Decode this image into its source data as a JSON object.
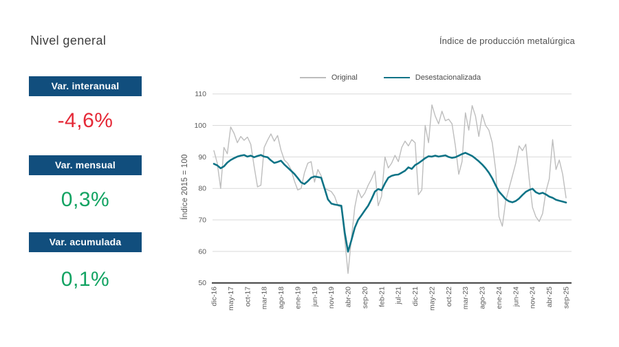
{
  "header": {
    "title": "Nivel general"
  },
  "stats": [
    {
      "label": "Var. interanual",
      "value": "-4,6%",
      "color": "#e52937"
    },
    {
      "label": "Var. mensual",
      "value": "0,3%",
      "color": "#12a362"
    },
    {
      "label": "Var. acumulada",
      "value": "0,1%",
      "color": "#12a362"
    }
  ],
  "theme": {
    "box_bg": "#114e7d",
    "box_text": "#ffffff"
  },
  "chart_data": {
    "type": "line",
    "title": "Índice de producción metalúrgica",
    "ylabel": "Índice 2015 = 100",
    "ylim": [
      50,
      110
    ],
    "y_ticks": [
      50,
      60,
      70,
      80,
      90,
      100,
      110
    ],
    "grid": "horizontal",
    "legend_position": "top",
    "x_unit": "month",
    "x_range": [
      "dic-16",
      "sep-25"
    ],
    "x_tick_step_months": 5,
    "x_tick_labels": [
      "dic-16",
      "may-17",
      "oct-17",
      "mar-18",
      "ago-18",
      "ene-19",
      "jun-19",
      "nov-19",
      "abr-20",
      "sep-20",
      "feb-21",
      "jul-21",
      "dic-21",
      "may-22",
      "oct-22",
      "mar-23",
      "ago-23",
      "ene-24",
      "jun-24",
      "nov-24",
      "abr-25",
      "sep-25"
    ],
    "series": [
      {
        "name": "Original",
        "key": "original",
        "color": "#bdbdbd",
        "line_width": 1.4,
        "values": [
          92,
          88,
          80,
          93,
          91,
          99.5,
          97.5,
          94.5,
          96.5,
          95.3,
          96.3,
          94,
          87,
          80.5,
          81,
          93,
          95.3,
          97.3,
          95,
          96.8,
          92.2,
          89,
          88,
          86,
          82.4,
          79.5,
          80,
          85,
          88,
          88.5,
          82,
          86,
          84,
          80,
          79.5,
          79,
          77.5,
          74.5,
          74,
          64,
          53,
          64,
          74,
          79.5,
          77,
          78.5,
          81,
          83,
          85.5,
          74.5,
          77.5,
          90,
          86.5,
          88,
          90.5,
          88.5,
          93,
          95,
          93.5,
          95.5,
          94.5,
          78,
          79.5,
          100,
          94.5,
          106.5,
          103,
          100.5,
          104.5,
          101.5,
          102,
          100.5,
          93.5,
          84.5,
          88.5,
          104,
          98.5,
          106.3,
          103,
          96.5,
          103.5,
          100,
          98.5,
          94.5,
          86,
          71,
          68,
          76,
          80,
          84,
          88,
          93.5,
          92,
          94,
          83,
          74,
          71,
          69.5,
          72,
          79,
          83,
          95.5,
          86,
          89,
          84.5,
          77
        ]
      },
      {
        "name": "Desestacionalizada",
        "key": "desestacionalizada",
        "color": "#0d7386",
        "line_width": 2.6,
        "values": [
          87.8,
          87.3,
          86.4,
          87,
          88.2,
          89,
          89.6,
          90.1,
          90.4,
          90.6,
          90.1,
          90.4,
          89.9,
          90.3,
          90.6,
          90.1,
          89.9,
          88.9,
          88.1,
          88.4,
          88.8,
          87.6,
          86.6,
          85.6,
          84.6,
          83.3,
          81.9,
          81.4,
          82.3,
          83.4,
          83.8,
          83.6,
          83.4,
          80,
          76.5,
          75.2,
          74.9,
          74.7,
          74.5,
          66,
          59.9,
          63.5,
          67.5,
          70,
          71.5,
          73,
          74.5,
          76.6,
          79,
          79.8,
          79.4,
          81.6,
          83.4,
          84,
          84.3,
          84.4,
          85,
          85.6,
          86.7,
          86.2,
          87.4,
          88,
          88.8,
          89.6,
          90.2,
          90.1,
          90.4,
          90.1,
          90.3,
          90.5,
          90,
          89.7,
          89.9,
          90.4,
          90.9,
          91.3,
          90.8,
          90.3,
          89.5,
          88.6,
          87.6,
          86.4,
          85,
          83.2,
          81,
          79,
          77.8,
          76.6,
          75.9,
          75.6,
          76,
          76.8,
          77.9,
          78.9,
          79.5,
          79.9,
          78.8,
          78.3,
          78.6,
          78.1,
          77.4,
          77,
          76.4,
          76.1,
          75.8,
          75.5
        ]
      }
    ],
    "colors": {
      "grid": "#d9d9d9",
      "axis": "#3c3c3c",
      "tick_text": "#5a5a5a"
    }
  }
}
